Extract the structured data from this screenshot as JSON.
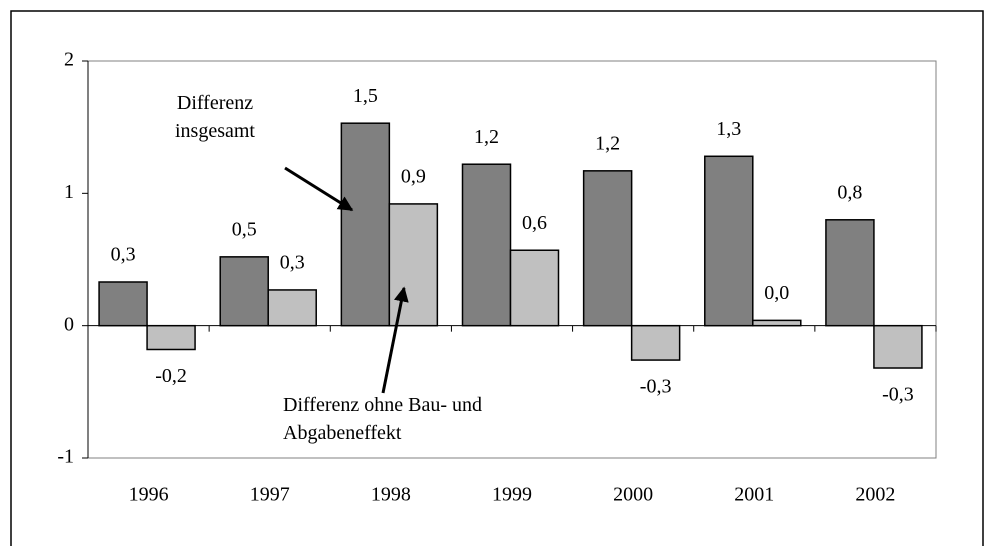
{
  "chart_data": {
    "type": "bar",
    "categories": [
      "1996",
      "1997",
      "1998",
      "1999",
      "2000",
      "2001",
      "2002"
    ],
    "series": [
      {
        "name": "Differenz insgesamt",
        "color": "#808080",
        "values": [
          0.33,
          0.52,
          1.53,
          1.22,
          1.17,
          1.28,
          0.8
        ],
        "value_labels": [
          "0,3",
          "0,5",
          "1,5",
          "1,2",
          "1,2",
          "1,3",
          "0,8"
        ]
      },
      {
        "name": "Differenz ohne Bau- und Abgabeneffekt",
        "color": "#c0c0c0",
        "values": [
          -0.18,
          0.27,
          0.92,
          0.57,
          -0.26,
          0.04,
          -0.32
        ],
        "value_labels": [
          "-0,2",
          "0,3",
          "0,9",
          "0,6",
          "-0,3",
          "0,0",
          "-0,3"
        ]
      }
    ],
    "ylim": [
      -1,
      2
    ],
    "yticks": [
      -1,
      0,
      1,
      2
    ],
    "grid": false
  }
}
